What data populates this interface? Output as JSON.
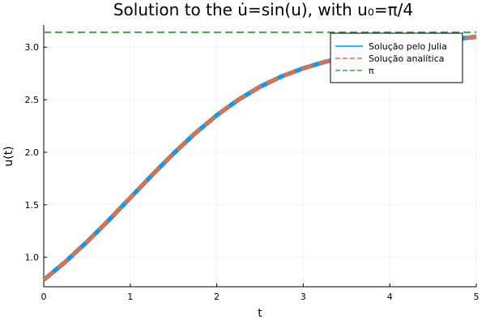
{
  "chart_data": {
    "type": "line",
    "title": "Solution to the u̇=sin(u), with u₀=π/4",
    "xlabel": "t",
    "ylabel": "u(t)",
    "xlim": [
      0,
      5
    ],
    "ylim": [
      0.72,
      3.21
    ],
    "xticks": [
      "0",
      "1",
      "2",
      "3",
      "4",
      "5"
    ],
    "yticks": [
      "1.0",
      "1.5",
      "2.0",
      "2.5",
      "3.0"
    ],
    "grid": true,
    "legend_position": "top-right",
    "series": [
      {
        "name": "Solução pelo Julia",
        "color": "#009AFA",
        "style": "solid",
        "x": [
          0.0,
          0.25,
          0.5,
          0.75,
          1.0,
          1.25,
          1.5,
          1.75,
          2.0,
          2.25,
          2.5,
          2.75,
          3.0,
          3.25,
          3.5,
          3.75,
          4.0,
          4.25,
          4.5,
          4.75,
          5.0
        ],
        "y": [
          0.785,
          0.957,
          1.147,
          1.352,
          1.566,
          1.781,
          1.988,
          2.18,
          2.352,
          2.5,
          2.623,
          2.722,
          2.799,
          2.86,
          2.906,
          2.954,
          2.997,
          3.03,
          3.056,
          3.076,
          3.098
        ]
      },
      {
        "name": "Solução analítica",
        "color": "#E26F46",
        "style": "dashed",
        "x": [
          0.0,
          0.25,
          0.5,
          0.75,
          1.0,
          1.25,
          1.5,
          1.75,
          2.0,
          2.25,
          2.5,
          2.75,
          3.0,
          3.25,
          3.5,
          3.75,
          4.0,
          4.25,
          4.5,
          4.75,
          5.0
        ],
        "y": [
          0.785,
          0.957,
          1.147,
          1.352,
          1.566,
          1.781,
          1.988,
          2.18,
          2.352,
          2.5,
          2.623,
          2.722,
          2.799,
          2.86,
          2.906,
          2.954,
          2.997,
          3.03,
          3.056,
          3.076,
          3.098
        ]
      },
      {
        "name": "π",
        "color": "#3DA44D",
        "style": "dashed",
        "x": [
          0,
          5
        ],
        "y": [
          3.14159,
          3.14159
        ]
      }
    ]
  }
}
